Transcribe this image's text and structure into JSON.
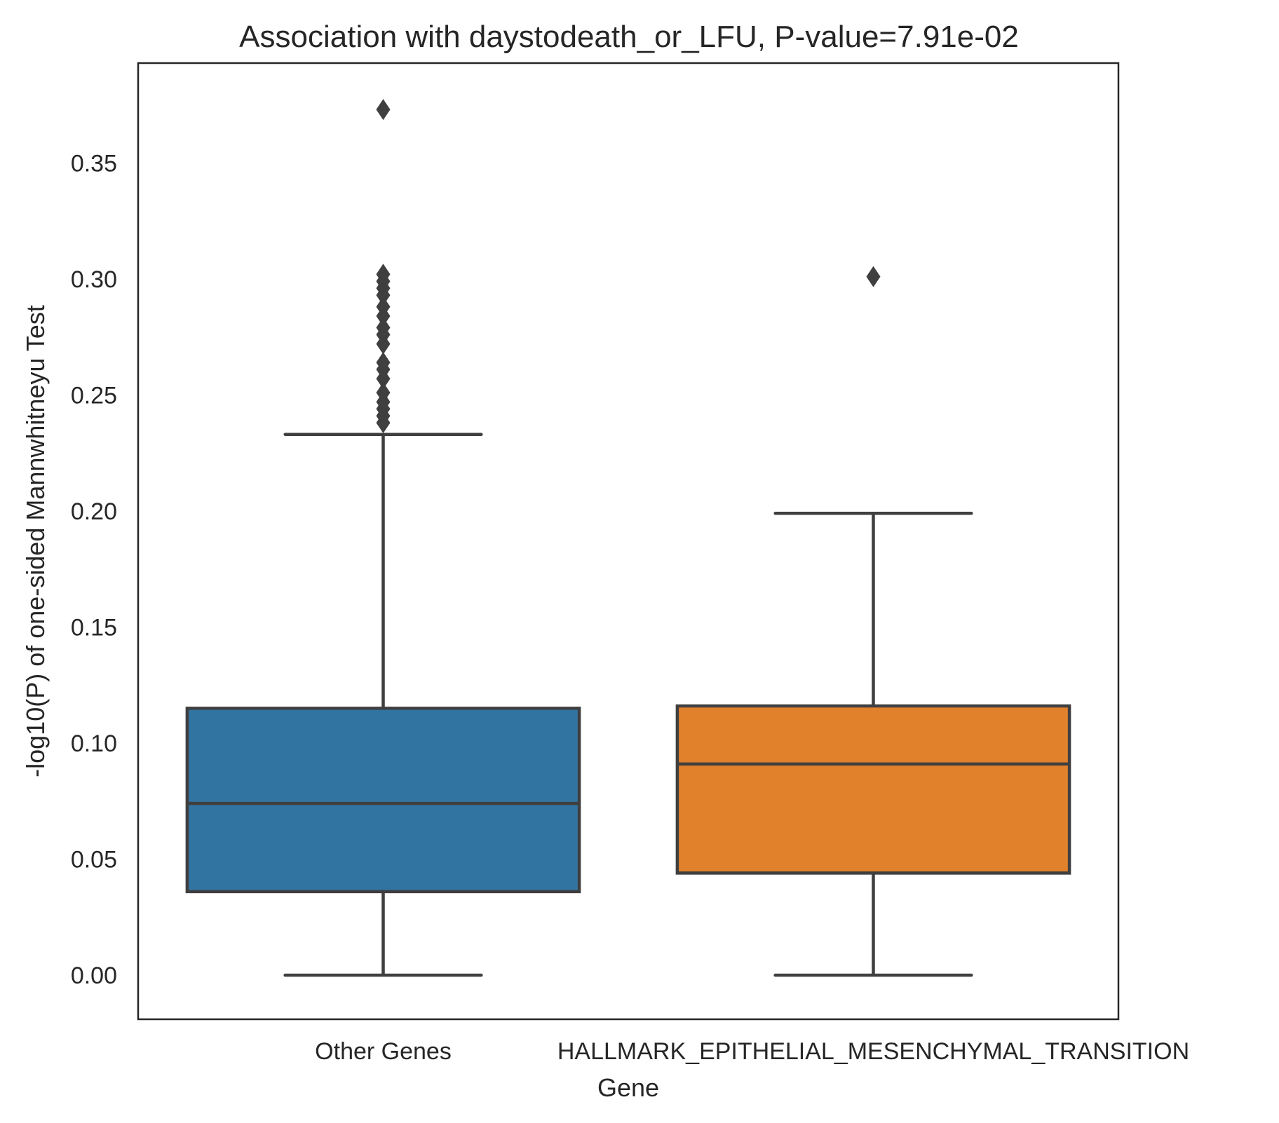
{
  "chart_data": {
    "type": "box",
    "title": "Association with daystodeath_or_LFU, P-value=7.91e-02",
    "xlabel": "Gene",
    "ylabel": "-log10(P) of one-sided Mannwhitneyu Test",
    "ylim": [
      -0.019,
      0.393
    ],
    "yticks": [
      0.0,
      0.05,
      0.1,
      0.15,
      0.2,
      0.25,
      0.3,
      0.35
    ],
    "ytick_labels": [
      "0.00",
      "0.05",
      "0.10",
      "0.15",
      "0.20",
      "0.25",
      "0.30",
      "0.35"
    ],
    "grid": false,
    "categories": [
      "Other Genes",
      "HALLMARK_EPITHELIAL_MESENCHYMAL_TRANSITION"
    ],
    "boxes": [
      {
        "category": "Other Genes",
        "color": "#3274a1",
        "whisker_low": 0.0,
        "q1": 0.036,
        "median": 0.074,
        "q3": 0.115,
        "whisker_high": 0.233,
        "outliers": [
          0.238,
          0.241,
          0.244,
          0.247,
          0.251,
          0.257,
          0.261,
          0.264,
          0.272,
          0.276,
          0.279,
          0.284,
          0.288,
          0.293,
          0.296,
          0.299,
          0.302,
          0.373
        ]
      },
      {
        "category": "HALLMARK_EPITHELIAL_MESENCHYMAL_TRANSITION",
        "color": "#e1812c",
        "whisker_low": 0.0,
        "q1": 0.044,
        "median": 0.091,
        "q3": 0.116,
        "whisker_high": 0.199,
        "outliers": [
          0.301
        ]
      }
    ],
    "line_color": "#3f3f3f",
    "frame_color": "#262626"
  }
}
